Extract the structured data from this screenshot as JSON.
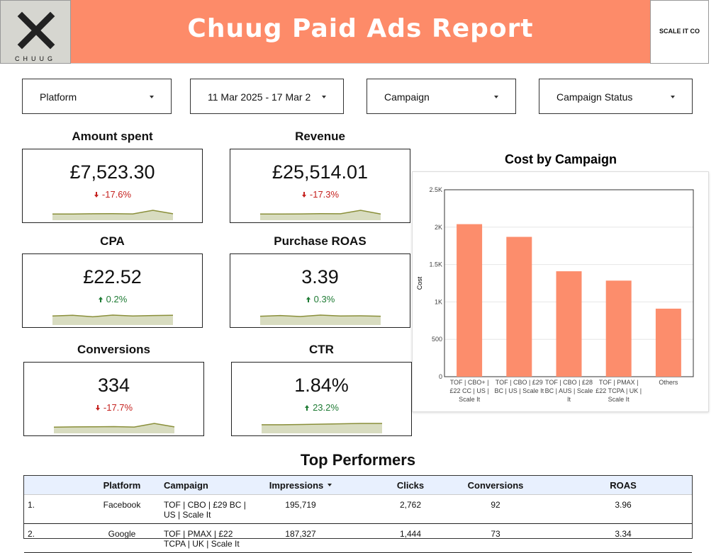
{
  "header": {
    "title": "Chuug Paid Ads Report",
    "left_logo": "CHUUG",
    "right_logo": "SCALE IT CO"
  },
  "filters": [
    "Platform",
    "11 Mar 2025 - 17 Mar 2",
    "Campaign",
    "Campaign Status"
  ],
  "kpis": [
    {
      "title": "Amount spent",
      "value": "£7,523.30",
      "change": "-17.6%",
      "direction": "down",
      "trend": [
        5,
        5,
        5.2,
        5.3,
        5.1,
        8,
        5.2
      ]
    },
    {
      "title": "Revenue",
      "value": "£25,514.01",
      "change": "-17.3%",
      "direction": "down",
      "trend": [
        5,
        5,
        5.1,
        5.3,
        5.2,
        8,
        5
      ]
    },
    {
      "title": "CPA",
      "value": "£22.52",
      "change": "0.2%",
      "direction": "up",
      "trend": [
        6,
        6.5,
        5.5,
        6.6,
        6,
        6.3,
        6.5
      ]
    },
    {
      "title": "Purchase ROAS",
      "value": "3.39",
      "change": "0.3%",
      "direction": "up",
      "trend": [
        6,
        6.5,
        5.8,
        6.8,
        6.2,
        6.3,
        6
      ]
    },
    {
      "title": "Conversions",
      "value": "334",
      "change": "-17.7%",
      "direction": "down",
      "trend": [
        5,
        5.2,
        5.3,
        5.4,
        5.1,
        8,
        5.2
      ]
    },
    {
      "title": "CTR",
      "value": "1.84%",
      "change": "23.2%",
      "direction": "up",
      "trend": [
        5,
        5,
        5.2,
        5.4,
        5.6,
        5.8,
        5.8
      ]
    }
  ],
  "cost_chart": {
    "type": "bar",
    "title": "Cost by Campaign",
    "y_label": "Cost",
    "color": "#fc8d6c",
    "grid": true,
    "categories": [
      "TOF | CBO+ | £22 CC | US | Scale It",
      "TOF | CBO | £29 BC | US | Scale It",
      "TOF | CBO | £28 BC | AUS | Scale It",
      "TOF | PMAX | £22 TCPA | UK | Scale It",
      "Others"
    ],
    "values": [
      2040,
      1870,
      1410,
      1285,
      910
    ],
    "ylim": [
      0,
      2500
    ],
    "yticks": [
      0,
      500,
      {
        "value": 1000,
        "label": "1K"
      },
      {
        "value": 1500,
        "label": "1.5K"
      },
      {
        "value": 2000,
        "label": "2K"
      },
      {
        "value": 2500,
        "label": "2.5K"
      }
    ]
  },
  "table": {
    "title": "Top Performers",
    "columns": [
      "Platform",
      "Campaign",
      "Impressions",
      "Clicks",
      "Conversions",
      "ROAS"
    ],
    "rows": [
      [
        "1.",
        "Facebook",
        "TOF | CBO | £29 BC | US | Scale It",
        "195,719",
        "2,762",
        "92",
        "3.96"
      ],
      [
        "2.",
        "Google",
        "TOF | PMAX | £22 TCPA | UK | Scale It",
        "187,327",
        "1,444",
        "73",
        "3.34"
      ]
    ]
  }
}
